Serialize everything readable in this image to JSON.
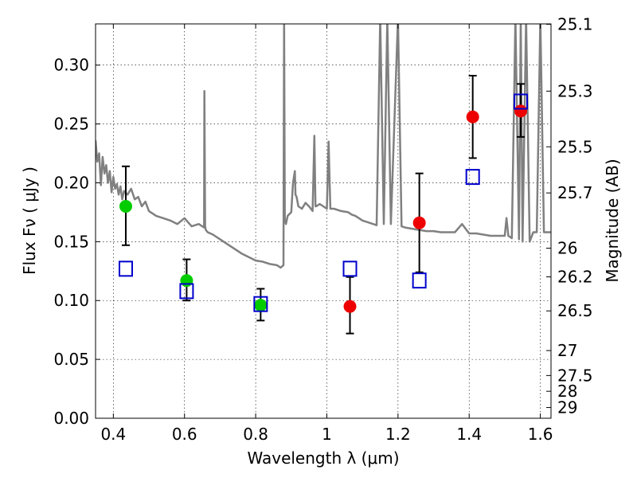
{
  "chart_data": {
    "type": "scatter",
    "xlabel": "Wavelength  λ (μm)",
    "ylabel": "Flux  Fν  ( μJy )",
    "ylabel_right": "Magnitude (AB)",
    "xlim": [
      0.35,
      1.63
    ],
    "ylim": [
      0.0,
      0.335
    ],
    "grid": true,
    "x_ticks": [
      {
        "value": 0.4,
        "label": "0.4"
      },
      {
        "value": 0.6,
        "label": "0.6"
      },
      {
        "value": 0.8,
        "label": "0.8"
      },
      {
        "value": 1.0,
        "label": "1"
      },
      {
        "value": 1.2,
        "label": "1.2"
      },
      {
        "value": 1.4,
        "label": "1.4"
      },
      {
        "value": 1.6,
        "label": "1.6"
      }
    ],
    "y_ticks": [
      {
        "value": 0.0,
        "label": "0.00"
      },
      {
        "value": 0.05,
        "label": "0.05"
      },
      {
        "value": 0.1,
        "label": "0.10"
      },
      {
        "value": 0.15,
        "label": "0.15"
      },
      {
        "value": 0.2,
        "label": "0.20"
      },
      {
        "value": 0.25,
        "label": "0.25"
      },
      {
        "value": 0.3,
        "label": "0.30"
      }
    ],
    "right_ticks": [
      {
        "flux": 0.3347,
        "label": "25.1"
      },
      {
        "flux": 0.2779,
        "label": "25.3"
      },
      {
        "flux": 0.2306,
        "label": "25.5"
      },
      {
        "flux": 0.1914,
        "label": "25.7"
      },
      {
        "flux": 0.1445,
        "label": "26"
      },
      {
        "flux": 0.1201,
        "label": "26.2"
      },
      {
        "flux": 0.0912,
        "label": "26.5"
      },
      {
        "flux": 0.0575,
        "label": "27"
      },
      {
        "flux": 0.0363,
        "label": "27.5"
      },
      {
        "flux": 0.0229,
        "label": "28"
      },
      {
        "flux": 0.0091,
        "label": "29"
      }
    ],
    "series": [
      {
        "name": "green-detections",
        "marker": "filled-circle",
        "color": "#00cc00",
        "points": [
          {
            "x": 0.435,
            "y": 0.18,
            "err_low": 0.147,
            "err_high": 0.214
          },
          {
            "x": 0.606,
            "y": 0.117,
            "err_low": 0.1,
            "err_high": 0.135
          },
          {
            "x": 0.814,
            "y": 0.096,
            "err_low": 0.083,
            "err_high": 0.11
          }
        ]
      },
      {
        "name": "red-detections",
        "marker": "filled-circle",
        "color": "#ee0000",
        "points": [
          {
            "x": 1.065,
            "y": 0.095,
            "err_low": 0.072,
            "err_high": 0.12
          },
          {
            "x": 1.26,
            "y": 0.166,
            "err_low": 0.124,
            "err_high": 0.208
          },
          {
            "x": 1.41,
            "y": 0.256,
            "err_low": 0.221,
            "err_high": 0.291
          },
          {
            "x": 1.545,
            "y": 0.261,
            "err_low": 0.239,
            "err_high": 0.284
          }
        ]
      },
      {
        "name": "model-photometry",
        "marker": "open-square",
        "color": "#0000cc",
        "points": [
          {
            "x": 0.435,
            "y": 0.127
          },
          {
            "x": 0.606,
            "y": 0.108
          },
          {
            "x": 0.814,
            "y": 0.097
          },
          {
            "x": 1.065,
            "y": 0.127
          },
          {
            "x": 1.26,
            "y": 0.117
          },
          {
            "x": 1.41,
            "y": 0.205
          },
          {
            "x": 1.545,
            "y": 0.269
          }
        ]
      }
    ],
    "model_spectrum": {
      "name": "template-spectrum",
      "color": "#808080",
      "x": [
        0.35,
        0.355,
        0.36,
        0.365,
        0.37,
        0.375,
        0.38,
        0.385,
        0.39,
        0.395,
        0.4,
        0.405,
        0.41,
        0.415,
        0.42,
        0.425,
        0.43,
        0.44,
        0.45,
        0.46,
        0.47,
        0.48,
        0.49,
        0.5,
        0.52,
        0.54,
        0.56,
        0.58,
        0.6,
        0.62,
        0.64,
        0.655,
        0.656,
        0.658,
        0.66,
        0.665,
        0.68,
        0.7,
        0.72,
        0.74,
        0.76,
        0.78,
        0.8,
        0.82,
        0.84,
        0.86,
        0.87,
        0.878,
        0.88,
        0.882,
        0.885,
        0.89,
        0.9,
        0.905,
        0.91,
        0.912,
        0.915,
        0.92,
        0.93,
        0.94,
        0.95,
        0.96,
        0.965,
        0.968,
        0.97,
        0.98,
        0.99,
        1.0,
        1.005,
        1.008,
        1.01,
        1.02,
        1.04,
        1.06,
        1.07,
        1.08,
        1.09,
        1.1,
        1.12,
        1.14,
        1.15,
        1.16,
        1.17,
        1.18,
        1.2,
        1.21,
        1.22,
        1.24,
        1.26,
        1.28,
        1.3,
        1.32,
        1.34,
        1.36,
        1.38,
        1.4,
        1.42,
        1.44,
        1.46,
        1.48,
        1.5,
        1.505,
        1.51,
        1.52,
        1.53,
        1.54,
        1.545,
        1.55,
        1.56,
        1.57,
        1.58,
        1.59,
        1.6,
        1.61,
        1.63
      ],
      "y": [
        0.236,
        0.218,
        0.225,
        0.198,
        0.222,
        0.208,
        0.215,
        0.2,
        0.21,
        0.192,
        0.205,
        0.195,
        0.199,
        0.19,
        0.197,
        0.186,
        0.193,
        0.19,
        0.195,
        0.186,
        0.188,
        0.18,
        0.184,
        0.176,
        0.172,
        0.17,
        0.168,
        0.165,
        0.17,
        0.163,
        0.165,
        0.162,
        0.278,
        0.163,
        0.16,
        0.158,
        0.156,
        0.152,
        0.148,
        0.144,
        0.14,
        0.137,
        0.134,
        0.133,
        0.131,
        0.13,
        0.128,
        0.13,
        0.34,
        0.168,
        0.165,
        0.172,
        0.175,
        0.2,
        0.21,
        0.19,
        0.188,
        0.18,
        0.178,
        0.183,
        0.18,
        0.176,
        0.24,
        0.18,
        0.18,
        0.182,
        0.18,
        0.178,
        0.235,
        0.2,
        0.178,
        0.178,
        0.176,
        0.175,
        0.173,
        0.172,
        0.17,
        0.168,
        0.166,
        0.164,
        0.34,
        0.165,
        0.34,
        0.165,
        0.34,
        0.163,
        0.162,
        0.161,
        0.16,
        0.159,
        0.159,
        0.158,
        0.158,
        0.158,
        0.165,
        0.157,
        0.157,
        0.156,
        0.155,
        0.155,
        0.155,
        0.17,
        0.155,
        0.153,
        0.34,
        0.152,
        0.34,
        0.15,
        0.34,
        0.15,
        0.158,
        0.158,
        0.34,
        0.158,
        0.158
      ]
    }
  }
}
